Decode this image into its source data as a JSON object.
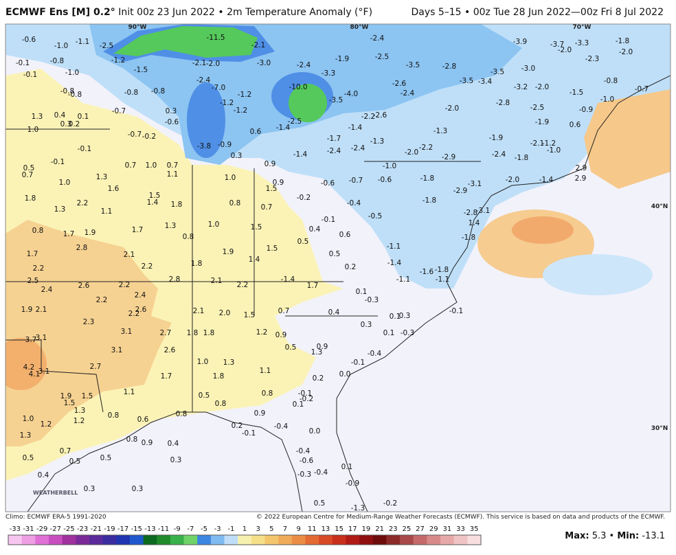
{
  "header": {
    "title_bold": "ECMWF Ens [M] 0.2°",
    "title_rest": " Init 00z 23 Jun 2022 • 2m Temperature Anomaly (°F)",
    "valid": "Days 5–15 • 00z Tue 28 Jun 2022—00z Fri 8 Jul 2022"
  },
  "map": {
    "meridians": [
      "90°W",
      "80°W",
      "70°W"
    ],
    "parallels": [
      "40°N",
      "30°N"
    ],
    "labels": [
      "-0.6",
      "-1.0",
      "-1.1",
      "-2.5",
      "-1.2",
      "-11.5",
      "-2.1",
      "-2.4",
      "-2.5",
      "-1.9",
      "-3.9",
      "-3.7",
      "-3.3",
      "-2.0",
      "-1.8",
      "-2.0",
      "-2.3",
      "-0.1",
      "-0.8",
      "-1.0",
      "-0.1",
      "-1.5",
      "-2.1",
      "-2.0",
      "-3.0",
      "-2.4",
      "-3.3",
      "-3.5",
      "-2.8",
      "-3.5",
      "-3.0",
      "-0.8",
      "-0.8",
      "-0.8",
      "-0.8",
      "-0.8",
      "-2.4",
      "-7.0",
      "-1.2",
      "-1.2",
      "-10.0",
      "-4.0",
      "-3.5",
      "-2.6",
      "-2.4",
      "-3.5",
      "-3.4",
      "-3.2",
      "-2.0",
      "-1.5",
      "-1.0",
      "-0.7",
      "-0.7",
      "0.3",
      "-1.2",
      "-0.6",
      "1.3",
      "0.4",
      "0.1",
      "0.3",
      "0.2",
      "1.0",
      "-1.4",
      "-2.5",
      "-1.4",
      "-2.2",
      "-2.6",
      "-2.0",
      "-2.8",
      "-2.5",
      "-1.9",
      "-0.9",
      "0.6",
      "-1.3",
      "-0.7",
      "-0.2",
      "0.6",
      "-1.7",
      "-1.9",
      "-0.1",
      "-3.8",
      "-0.9",
      "0.3",
      "-1.4",
      "-2.4",
      "-2.4",
      "-1.3",
      "-2.0",
      "-2.2",
      "-2.9",
      "-2.4",
      "-1.8",
      "-2.1",
      "-1.2",
      "-1.0",
      "-0.1",
      "0.5",
      "0.7",
      "0.7",
      "1.0",
      "0.7",
      "1.1",
      "0.9",
      "1.0",
      "0.9",
      "-0.6",
      "-0.7",
      "-0.6",
      "-1.0",
      "-1.8",
      "-3.1",
      "-2.9",
      "-2.0",
      "-1.4",
      "2.9",
      "2.9",
      "1.0",
      "1.3",
      "1.6",
      "1.8",
      "2.2",
      "1.3",
      "1.5",
      "1.4",
      "1.8",
      "1.5",
      "-0.2",
      "0.8",
      "0.7",
      "-0.4",
      "-1.8",
      "-2.8",
      "-3.1",
      "1.1",
      "0.8",
      "1.7",
      "1.9",
      "1.7",
      "1.3",
      "1.0",
      "1.5",
      "0.4",
      "-0.1",
      "0.6",
      "-0.5",
      "1.4",
      "0.8",
      "0.5",
      "-1.8",
      "1.7",
      "2.8",
      "2.1",
      "1.9",
      "1.4",
      "1.5",
      "0.5",
      "-1.1",
      "-1.4",
      "0.2",
      "2.2",
      "1.8",
      "2.2",
      "-1.6",
      "-1.8",
      "2.5",
      "2.4",
      "2.6",
      "2.2",
      "2.8",
      "2.1",
      "2.2",
      "-1.4",
      "1.7",
      "-1.1",
      "-1.1",
      "2.4",
      "2.2",
      "0.1",
      "-0.3",
      "1.9",
      "2.1",
      "2.2",
      "2.6",
      "2.1",
      "2.0",
      "1.5",
      "0.7",
      "0.4",
      "-0.1",
      "0.1",
      "0.3",
      "2.3",
      "0.3",
      "3.1",
      "2.7",
      "1.8",
      "1.8",
      "1.2",
      "0.9",
      "0.1",
      "-0.3",
      "3.1",
      "3.7",
      "0.9",
      "0.5",
      "1.3",
      "3.1",
      "2.6",
      "-0.4",
      "2.7",
      "1.0",
      "1.3",
      "1.1",
      "-0.1",
      "4.2",
      "4.1",
      "3.1",
      "1.7",
      "1.8",
      "0.0",
      "0.2",
      "1.1",
      "0.8",
      "-0.1",
      "1.9",
      "1.5",
      "0.5",
      "1.5",
      "-0.2",
      "0.8",
      "0.1",
      "1.3",
      "0.8",
      "0.8",
      "0.9",
      "1.0",
      "1.2",
      "0.6",
      "0.2",
      "-0.4",
      "-0.1",
      "0.0",
      "1.2",
      "1.3",
      "0.8",
      "0.9",
      "0.4",
      "-0.4",
      "0.7",
      "0.5",
      "0.5",
      "0.5",
      "0.3",
      "-0.6",
      "0.1",
      "-0.3",
      "-0.4",
      "0.4",
      "-0.9",
      "0.3",
      "0.3",
      "0.5",
      "-1.3",
      "-0.2"
    ],
    "logo": "WEATHERBELL"
  },
  "footer": {
    "climo": "Climo: ECMWF ERA-5 1991-2020",
    "copyright": "© 2022 European Centre for Medium-Range Weather Forecasts (ECMWF). This service is based on data and products of the ECMWF."
  },
  "colorbar": {
    "ticks": [
      -33,
      -31,
      -29,
      -27,
      -25,
      -23,
      -21,
      -19,
      -17,
      -15,
      -13,
      -11,
      -9,
      -7,
      -5,
      -3,
      -1,
      1,
      3,
      5,
      7,
      9,
      11,
      13,
      15,
      17,
      19,
      21,
      23,
      25,
      27,
      29,
      31,
      33,
      35
    ]
  },
  "stats": {
    "max_label": "Max:",
    "max": "5.3",
    "separator": "•",
    "min_label": "Min:",
    "min": "-13.1"
  }
}
